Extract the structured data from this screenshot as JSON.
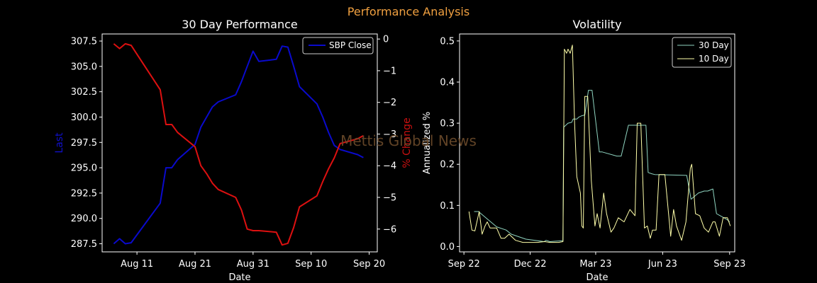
{
  "figure": {
    "suptitle": "Performance Analysis",
    "suptitle_color": "#f0a040",
    "watermark": "Mettis Global News",
    "watermark_color": "#6b4a2a"
  },
  "chart_data": [
    {
      "type": "line",
      "title": "30 Day Performance",
      "xlabel": "Date",
      "ylabel": "Last",
      "ylabel_color": "#1010cc",
      "y2label": "% Change",
      "y2label_color": "#cc1010",
      "x_ticks": [
        "Aug 11",
        "Aug 21",
        "Aug 31",
        "Sep 10",
        "Sep 20"
      ],
      "x_tick_days": [
        4,
        14,
        24,
        34,
        44
      ],
      "xlim_days": [
        -2,
        45.4
      ],
      "ylim": [
        286.7,
        308.2
      ],
      "y_ticks": [
        "287.5",
        "290.0",
        "292.5",
        "295.0",
        "297.5",
        "300.0",
        "302.5",
        "305.0",
        "307.5"
      ],
      "y2lim": [
        -6.72,
        0.16
      ],
      "y2_ticks": [
        "0",
        "−1",
        "−2",
        "−3",
        "−4",
        "−5",
        "−6"
      ],
      "legend": {
        "position": "upper-right",
        "entries": [
          "SBP Close"
        ]
      },
      "series": [
        {
          "name": "SBP Close",
          "color": "#0a0acc",
          "axis": "left",
          "x_days": [
            0,
            1,
            2,
            3,
            8,
            9,
            10,
            11,
            14,
            15,
            16,
            17,
            18,
            21,
            22,
            23,
            24,
            25,
            28,
            29,
            30,
            31,
            32,
            35,
            36,
            37,
            38,
            39,
            42,
            43
          ],
          "values": [
            287.5,
            288.0,
            287.5,
            287.6,
            291.5,
            295.0,
            295.0,
            295.8,
            297.3,
            299.0,
            300.0,
            301.0,
            301.5,
            302.2,
            303.5,
            305.0,
            306.5,
            305.5,
            305.7,
            307.0,
            306.9,
            305.0,
            303.0,
            301.3,
            300.0,
            298.5,
            297.2,
            296.8,
            296.3,
            296.0
          ]
        },
        {
          "name": "% Change",
          "color": "#dd1010",
          "axis": "right",
          "x_days": [
            0,
            1,
            2,
            3,
            8,
            9,
            10,
            11,
            14,
            15,
            16,
            17,
            18,
            21,
            22,
            23,
            24,
            25,
            28,
            29,
            30,
            31,
            32,
            35,
            36,
            37,
            38,
            39,
            42,
            43
          ],
          "values": [
            -0.15,
            -0.3,
            -0.15,
            -0.2,
            -1.6,
            -2.7,
            -2.7,
            -2.95,
            -3.4,
            -4.0,
            -4.25,
            -4.55,
            -4.75,
            -5.0,
            -5.4,
            -6.0,
            -6.05,
            -6.05,
            -6.1,
            -6.5,
            -6.45,
            -5.95,
            -5.3,
            -4.95,
            -4.5,
            -4.1,
            -3.75,
            -3.3,
            -3.15,
            -3.05
          ]
        }
      ]
    },
    {
      "type": "line",
      "title": "Volatility",
      "xlabel": "Date",
      "ylabel": "Annualized %",
      "x_ticks": [
        "Sep 22",
        "Dec 22",
        "Mar 23",
        "Jun 23",
        "Sep 23"
      ],
      "x_tick_days": [
        0,
        91,
        181,
        273,
        365
      ],
      "xlim_days": [
        -6,
        372
      ],
      "ylim": [
        -0.013,
        0.517
      ],
      "y_ticks": [
        "0.0",
        "0.1",
        "0.2",
        "0.3",
        "0.4",
        "0.5"
      ],
      "legend": {
        "position": "upper-right",
        "entries": [
          "30 Day",
          "10 Day"
        ]
      },
      "series": [
        {
          "name": "30 Day",
          "color": "#8fd4c0",
          "x_days": [
            14,
            20,
            30,
            45,
            58,
            65,
            85,
            110,
            113,
            118,
            126,
            136,
            137,
            143,
            148,
            150,
            155,
            158,
            162,
            166,
            171,
            176,
            186,
            190,
            210,
            216,
            226,
            250,
            253,
            258,
            262,
            282,
            306,
            312,
            322,
            330,
            335,
            342,
            347,
            352,
            362,
            365
          ],
          "values": [
            0.085,
            0.085,
            0.07,
            0.048,
            0.04,
            0.03,
            0.018,
            0.012,
            0.015,
            0.012,
            0.013,
            0.014,
            0.29,
            0.3,
            0.302,
            0.31,
            0.31,
            0.315,
            0.318,
            0.32,
            0.38,
            0.38,
            0.23,
            0.23,
            0.22,
            0.22,
            0.295,
            0.295,
            0.18,
            0.177,
            0.175,
            0.174,
            0.173,
            0.115,
            0.13,
            0.135,
            0.135,
            0.14,
            0.08,
            0.075,
            0.065,
            0.06
          ]
        },
        {
          "name": "10 Day",
          "color": "#ffffaa",
          "x_days": [
            7,
            11,
            15,
            21,
            25,
            29,
            32,
            36,
            40,
            45,
            51,
            56,
            62,
            71,
            81,
            91,
            101,
            111,
            118,
            124,
            130,
            136,
            138,
            141,
            143,
            146,
            149,
            152,
            155,
            160,
            162,
            164,
            166,
            170,
            175,
            180,
            183,
            187,
            192,
            196,
            202,
            206,
            212,
            220,
            228,
            235,
            238,
            243,
            248,
            252,
            256,
            259,
            264,
            268,
            276,
            284,
            288,
            292,
            299,
            305,
            311,
            313,
            318,
            324,
            330,
            336,
            342,
            345,
            351,
            356,
            362,
            366
          ],
          "values": [
            0.085,
            0.04,
            0.038,
            0.085,
            0.03,
            0.05,
            0.06,
            0.045,
            0.045,
            0.045,
            0.02,
            0.02,
            0.03,
            0.015,
            0.01,
            0.01,
            0.01,
            0.012,
            0.01,
            0.01,
            0.01,
            0.012,
            0.48,
            0.47,
            0.48,
            0.47,
            0.49,
            0.3,
            0.17,
            0.13,
            0.05,
            0.045,
            0.365,
            0.365,
            0.16,
            0.05,
            0.08,
            0.045,
            0.13,
            0.08,
            0.035,
            0.045,
            0.07,
            0.06,
            0.09,
            0.075,
            0.3,
            0.3,
            0.045,
            0.05,
            0.02,
            0.04,
            0.04,
            0.175,
            0.175,
            0.025,
            0.09,
            0.05,
            0.015,
            0.06,
            0.19,
            0.2,
            0.08,
            0.075,
            0.045,
            0.035,
            0.06,
            0.06,
            0.025,
            0.07,
            0.07,
            0.05
          ]
        }
      ]
    }
  ]
}
